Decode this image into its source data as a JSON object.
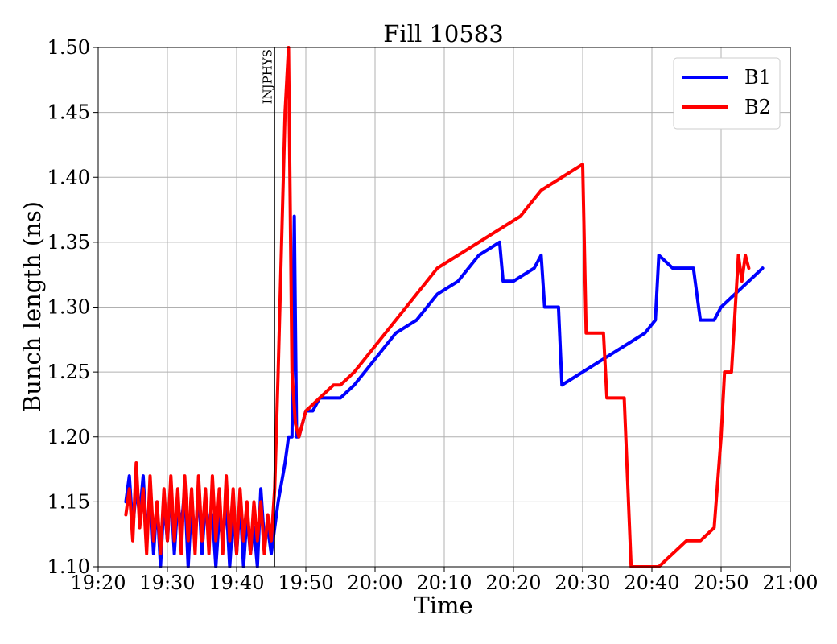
{
  "chart_data": {
    "type": "line",
    "title": "Fill 10583",
    "xlabel": "Time",
    "ylabel": "Bunch length (ns)",
    "xlim": [
      "19:20",
      "21:00"
    ],
    "ylim": [
      1.1,
      1.5
    ],
    "xticks": [
      "19:20",
      "19:30",
      "19:40",
      "19:50",
      "20:00",
      "20:10",
      "20:20",
      "20:30",
      "20:40",
      "20:50",
      "21:00"
    ],
    "yticks": [
      "1.10",
      "1.15",
      "1.20",
      "1.25",
      "1.30",
      "1.35",
      "1.40",
      "1.45",
      "1.50"
    ],
    "grid": true,
    "legend": "top-right",
    "annotations": [
      {
        "x": "19:45:30",
        "label": "INJPHYS"
      }
    ],
    "series": [
      {
        "name": "B1",
        "color": "#0000ff",
        "points": [
          [
            "19:24:00",
            1.15
          ],
          [
            "19:24:30",
            1.17
          ],
          [
            "19:25:00",
            1.13
          ],
          [
            "19:25:30",
            1.16
          ],
          [
            "19:26:00",
            1.14
          ],
          [
            "19:26:30",
            1.17
          ],
          [
            "19:27:00",
            1.12
          ],
          [
            "19:27:30",
            1.16
          ],
          [
            "19:28:00",
            1.11
          ],
          [
            "19:28:30",
            1.15
          ],
          [
            "19:29:00",
            1.1
          ],
          [
            "19:29:30",
            1.15
          ],
          [
            "19:30:00",
            1.12
          ],
          [
            "19:30:30",
            1.16
          ],
          [
            "19:31:00",
            1.11
          ],
          [
            "19:31:30",
            1.15
          ],
          [
            "19:32:00",
            1.13
          ],
          [
            "19:32:30",
            1.16
          ],
          [
            "19:33:00",
            1.1
          ],
          [
            "19:33:30",
            1.15
          ],
          [
            "19:34:00",
            1.12
          ],
          [
            "19:34:30",
            1.16
          ],
          [
            "19:35:00",
            1.11
          ],
          [
            "19:35:30",
            1.15
          ],
          [
            "19:36:00",
            1.13
          ],
          [
            "19:36:30",
            1.14
          ],
          [
            "19:37:00",
            1.1
          ],
          [
            "19:37:30",
            1.14
          ],
          [
            "19:38:00",
            1.12
          ],
          [
            "19:38:30",
            1.15
          ],
          [
            "19:39:00",
            1.1
          ],
          [
            "19:39:30",
            1.14
          ],
          [
            "19:40:00",
            1.11
          ],
          [
            "19:40:30",
            1.15
          ],
          [
            "19:41:00",
            1.1
          ],
          [
            "19:41:30",
            1.14
          ],
          [
            "19:42:00",
            1.11
          ],
          [
            "19:42:30",
            1.13
          ],
          [
            "19:43:00",
            1.1
          ],
          [
            "19:43:30",
            1.16
          ],
          [
            "19:44:00",
            1.12
          ],
          [
            "19:44:30",
            1.13
          ],
          [
            "19:45:00",
            1.11
          ],
          [
            "19:46:00",
            1.15
          ],
          [
            "19:47:00",
            1.18
          ],
          [
            "19:47:30",
            1.2
          ],
          [
            "19:48:00",
            1.2
          ],
          [
            "19:48:20",
            1.37
          ],
          [
            "19:48:40",
            1.2
          ],
          [
            "19:49:00",
            1.2
          ],
          [
            "19:50:00",
            1.22
          ],
          [
            "19:51:00",
            1.22
          ],
          [
            "19:52:00",
            1.23
          ],
          [
            "19:53:00",
            1.23
          ],
          [
            "19:54:00",
            1.23
          ],
          [
            "19:55:00",
            1.23
          ],
          [
            "19:57:00",
            1.24
          ],
          [
            "20:00:00",
            1.26
          ],
          [
            "20:03:00",
            1.28
          ],
          [
            "20:06:00",
            1.29
          ],
          [
            "20:09:00",
            1.31
          ],
          [
            "20:12:00",
            1.32
          ],
          [
            "20:15:00",
            1.34
          ],
          [
            "20:18:00",
            1.35
          ],
          [
            "20:18:30",
            1.32
          ],
          [
            "20:20:00",
            1.32
          ],
          [
            "20:23:00",
            1.33
          ],
          [
            "20:24:00",
            1.34
          ],
          [
            "20:24:30",
            1.3
          ],
          [
            "20:26:30",
            1.3
          ],
          [
            "20:27:00",
            1.24
          ],
          [
            "20:30:00",
            1.25
          ],
          [
            "20:33:00",
            1.26
          ],
          [
            "20:36:00",
            1.27
          ],
          [
            "20:39:00",
            1.28
          ],
          [
            "20:40:30",
            1.29
          ],
          [
            "20:41:00",
            1.34
          ],
          [
            "20:43:00",
            1.33
          ],
          [
            "20:44:00",
            1.33
          ],
          [
            "20:45:00",
            1.33
          ],
          [
            "20:46:00",
            1.33
          ],
          [
            "20:47:00",
            1.29
          ],
          [
            "20:49:00",
            1.29
          ],
          [
            "20:50:00",
            1.3
          ],
          [
            "20:52:00",
            1.31
          ],
          [
            "20:54:00",
            1.32
          ],
          [
            "20:56:00",
            1.33
          ]
        ]
      },
      {
        "name": "B2",
        "color": "#ff0000",
        "points": [
          [
            "19:24:00",
            1.14
          ],
          [
            "19:24:30",
            1.16
          ],
          [
            "19:25:00",
            1.12
          ],
          [
            "19:25:30",
            1.18
          ],
          [
            "19:26:00",
            1.13
          ],
          [
            "19:26:30",
            1.16
          ],
          [
            "19:27:00",
            1.11
          ],
          [
            "19:27:30",
            1.17
          ],
          [
            "19:28:00",
            1.12
          ],
          [
            "19:28:30",
            1.15
          ],
          [
            "19:29:00",
            1.11
          ],
          [
            "19:29:30",
            1.16
          ],
          [
            "19:30:00",
            1.12
          ],
          [
            "19:30:30",
            1.17
          ],
          [
            "19:31:00",
            1.12
          ],
          [
            "19:31:30",
            1.16
          ],
          [
            "19:32:00",
            1.11
          ],
          [
            "19:32:30",
            1.17
          ],
          [
            "19:33:00",
            1.12
          ],
          [
            "19:33:30",
            1.16
          ],
          [
            "19:34:00",
            1.11
          ],
          [
            "19:34:30",
            1.17
          ],
          [
            "19:35:00",
            1.12
          ],
          [
            "19:35:30",
            1.16
          ],
          [
            "19:36:00",
            1.11
          ],
          [
            "19:36:30",
            1.17
          ],
          [
            "19:37:00",
            1.12
          ],
          [
            "19:37:30",
            1.16
          ],
          [
            "19:38:00",
            1.11
          ],
          [
            "19:38:30",
            1.17
          ],
          [
            "19:39:00",
            1.12
          ],
          [
            "19:39:30",
            1.16
          ],
          [
            "19:40:00",
            1.11
          ],
          [
            "19:40:30",
            1.16
          ],
          [
            "19:41:00",
            1.12
          ],
          [
            "19:41:30",
            1.15
          ],
          [
            "19:42:00",
            1.11
          ],
          [
            "19:42:30",
            1.15
          ],
          [
            "19:43:00",
            1.12
          ],
          [
            "19:43:30",
            1.15
          ],
          [
            "19:44:00",
            1.11
          ],
          [
            "19:44:30",
            1.14
          ],
          [
            "19:45:00",
            1.12
          ],
          [
            "19:45:30",
            1.16
          ],
          [
            "19:46:00",
            1.25
          ],
          [
            "19:47:00",
            1.45
          ],
          [
            "19:47:30",
            1.5
          ],
          [
            "19:48:00",
            1.25
          ],
          [
            "19:48:30",
            1.21
          ],
          [
            "19:49:00",
            1.2
          ],
          [
            "19:50:00",
            1.22
          ],
          [
            "19:52:00",
            1.23
          ],
          [
            "19:54:00",
            1.24
          ],
          [
            "19:55:00",
            1.24
          ],
          [
            "19:57:00",
            1.25
          ],
          [
            "20:00:00",
            1.27
          ],
          [
            "20:03:00",
            1.29
          ],
          [
            "20:06:00",
            1.31
          ],
          [
            "20:09:00",
            1.33
          ],
          [
            "20:12:00",
            1.34
          ],
          [
            "20:15:00",
            1.35
          ],
          [
            "20:18:00",
            1.36
          ],
          [
            "20:21:00",
            1.37
          ],
          [
            "20:24:00",
            1.39
          ],
          [
            "20:27:00",
            1.4
          ],
          [
            "20:30:00",
            1.41
          ],
          [
            "20:30:30",
            1.28
          ],
          [
            "20:33:00",
            1.28
          ],
          [
            "20:33:30",
            1.23
          ],
          [
            "20:36:00",
            1.23
          ],
          [
            "20:37:00",
            1.1
          ],
          [
            "20:38:00",
            1.1
          ],
          [
            "20:39:00",
            1.1
          ],
          [
            "20:41:00",
            1.1
          ],
          [
            "20:43:00",
            1.11
          ],
          [
            "20:45:00",
            1.12
          ],
          [
            "20:47:00",
            1.12
          ],
          [
            "20:49:00",
            1.13
          ],
          [
            "20:50:00",
            1.2
          ],
          [
            "20:50:30",
            1.25
          ],
          [
            "20:51:30",
            1.25
          ],
          [
            "20:52:30",
            1.34
          ],
          [
            "20:53:00",
            1.32
          ],
          [
            "20:53:30",
            1.34
          ],
          [
            "20:54:00",
            1.33
          ]
        ]
      }
    ]
  }
}
